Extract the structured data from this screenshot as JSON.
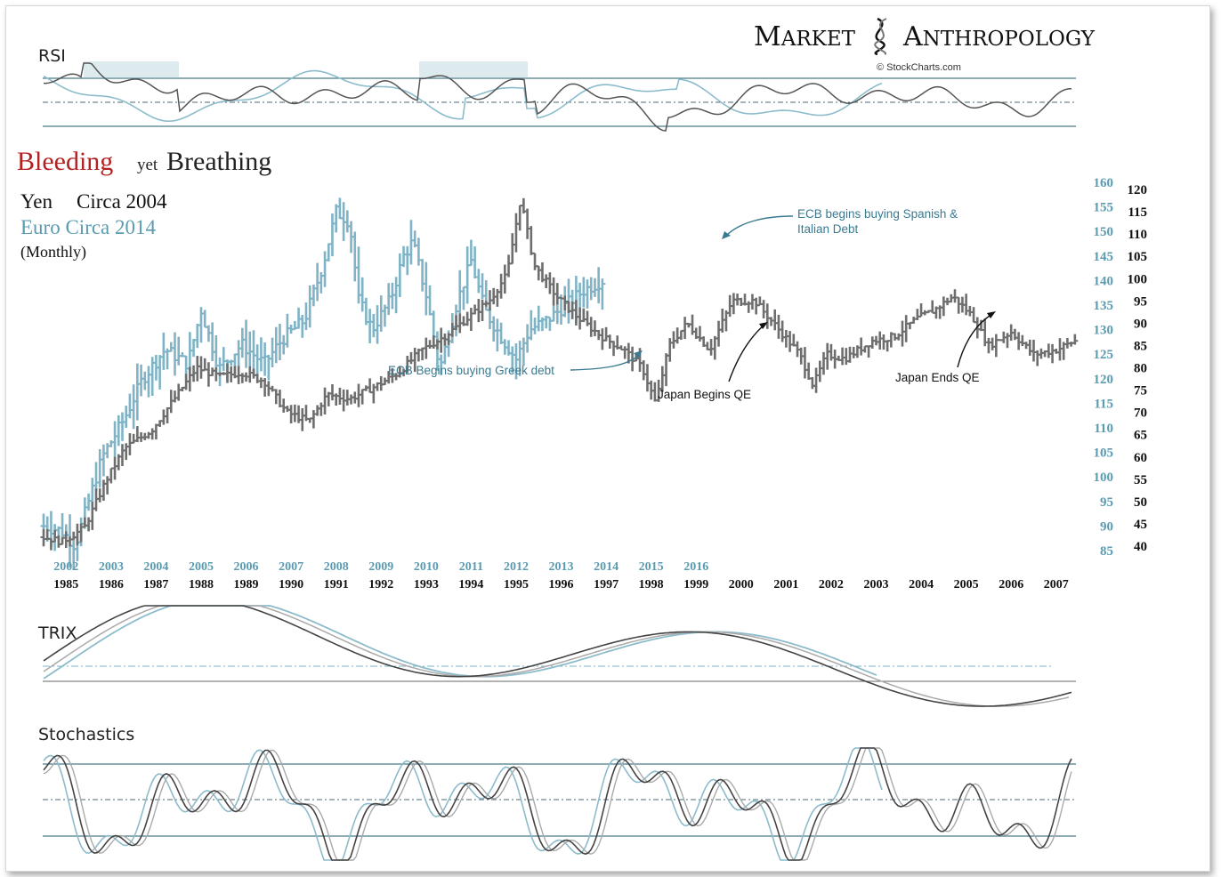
{
  "brand": {
    "name_part1": "Market",
    "name_part2": "Anthropology",
    "credit": "© StockCharts.com"
  },
  "title": {
    "word1": "Bleeding",
    "word2": "yet",
    "word3": "Breathing"
  },
  "legend": {
    "yen_label": "Yen",
    "yen_circa": "Circa 2004",
    "euro_label": "Euro Circa 2014",
    "frequency": "(Monthly)"
  },
  "panels": {
    "rsi": "RSI",
    "trix": "TRIX",
    "stochastics": "Stochastics"
  },
  "annotations": {
    "ecb_spanish_line1": "ECB begins buying Spanish &",
    "ecb_spanish_line2": "Italian Debt",
    "ecb_greek": "ECB Begins buying Greek debt",
    "japan_begins": "Japan Begins QE",
    "japan_ends": "Japan Ends QE"
  },
  "colors": {
    "euro_series": "#7fb3c5",
    "yen_series": "#6e6e6e",
    "title_bleeding": "#b22222",
    "teal_text": "#5b9bb1",
    "overlap": "#2a4a55"
  },
  "chart_data": {
    "type": "bar",
    "frequency": "monthly",
    "series": [
      {
        "name": "Yen",
        "color": "#6e6e6e",
        "x_years": [
          "1985",
          "1986",
          "1987",
          "1988",
          "1989",
          "1990",
          "1991",
          "1992",
          "1993",
          "1994",
          "1995",
          "1996",
          "1997",
          "1998",
          "1999",
          "2000",
          "2001",
          "2002",
          "2003",
          "2004",
          "2005",
          "2006",
          "2007"
        ],
        "x_start": 1985,
        "x_end": 2007.9,
        "y_axis_ticks": [
          40,
          45,
          50,
          55,
          60,
          65,
          70,
          75,
          80,
          85,
          90,
          95,
          100,
          105,
          110,
          115,
          120
        ],
        "ylim": [
          40,
          120
        ],
        "anchors": [
          [
            1985.0,
            42
          ],
          [
            1985.4,
            41
          ],
          [
            1985.9,
            44
          ],
          [
            1986.4,
            55
          ],
          [
            1986.8,
            62
          ],
          [
            1987.4,
            66
          ],
          [
            1987.9,
            73
          ],
          [
            1988.4,
            80
          ],
          [
            1988.9,
            78
          ],
          [
            1989.4,
            79
          ],
          [
            1989.9,
            77
          ],
          [
            1990.4,
            70
          ],
          [
            1990.9,
            68
          ],
          [
            1991.3,
            74
          ],
          [
            1991.8,
            73
          ],
          [
            1992.4,
            76
          ],
          [
            1992.9,
            79
          ],
          [
            1993.4,
            84
          ],
          [
            1993.9,
            87
          ],
          [
            1994.4,
            91
          ],
          [
            1994.9,
            95
          ],
          [
            1995.3,
            101
          ],
          [
            1995.6,
            118
          ],
          [
            1995.9,
            103
          ],
          [
            1996.4,
            96
          ],
          [
            1996.9,
            91
          ],
          [
            1997.4,
            87
          ],
          [
            1997.9,
            84
          ],
          [
            1998.3,
            80
          ],
          [
            1998.6,
            72
          ],
          [
            1998.9,
            85
          ],
          [
            1999.3,
            90
          ],
          [
            1999.8,
            84
          ],
          [
            2000.3,
            95
          ],
          [
            2000.8,
            95
          ],
          [
            2001.3,
            89
          ],
          [
            2001.8,
            83
          ],
          [
            2002.1,
            76
          ],
          [
            2002.4,
            83
          ],
          [
            2002.8,
            82
          ],
          [
            2003.4,
            86
          ],
          [
            2003.9,
            87
          ],
          [
            2004.4,
            91
          ],
          [
            2004.8,
            93
          ],
          [
            2005.2,
            96
          ],
          [
            2005.6,
            92
          ],
          [
            2006.0,
            85
          ],
          [
            2006.5,
            88
          ],
          [
            2007.0,
            83
          ],
          [
            2007.5,
            84
          ],
          [
            2007.9,
            86
          ]
        ]
      },
      {
        "name": "Euro Circa 2014",
        "color": "#7fb3c5",
        "x_years": [
          "2002",
          "2003",
          "2004",
          "2005",
          "2006",
          "2007",
          "2008",
          "2009",
          "2010",
          "2011",
          "2012",
          "2013",
          "2014",
          "2015",
          "2016"
        ],
        "x_start": 2002,
        "x_end": 2014.4,
        "y_axis_ticks": [
          85,
          90,
          95,
          100,
          105,
          110,
          115,
          120,
          125,
          130,
          135,
          140,
          145,
          150,
          155,
          160
        ],
        "ylim": [
          85,
          160
        ],
        "anchors": [
          [
            2002.0,
            90
          ],
          [
            2002.4,
            89
          ],
          [
            2002.7,
            86
          ],
          [
            2002.9,
            92
          ],
          [
            2003.3,
            104
          ],
          [
            2003.8,
            112
          ],
          [
            2004.2,
            120
          ],
          [
            2004.7,
            126
          ],
          [
            2005.2,
            123
          ],
          [
            2005.5,
            134
          ],
          [
            2005.9,
            122
          ],
          [
            2006.4,
            127
          ],
          [
            2006.9,
            123
          ],
          [
            2007.3,
            128
          ],
          [
            2007.8,
            132
          ],
          [
            2008.2,
            143
          ],
          [
            2008.5,
            154
          ],
          [
            2008.8,
            152
          ],
          [
            2009.0,
            136
          ],
          [
            2009.3,
            130
          ],
          [
            2009.7,
            136
          ],
          [
            2010.0,
            145
          ],
          [
            2010.2,
            148
          ],
          [
            2010.5,
            137
          ],
          [
            2010.8,
            122
          ],
          [
            2011.2,
            136
          ],
          [
            2011.5,
            144
          ],
          [
            2011.8,
            134
          ],
          [
            2012.2,
            128
          ],
          [
            2012.5,
            124
          ],
          [
            2012.8,
            130
          ],
          [
            2013.2,
            132
          ],
          [
            2013.6,
            135
          ],
          [
            2014.0,
            138
          ],
          [
            2014.4,
            140
          ]
        ]
      }
    ],
    "indicators": [
      "RSI",
      "TRIX",
      "Stochastics"
    ]
  }
}
